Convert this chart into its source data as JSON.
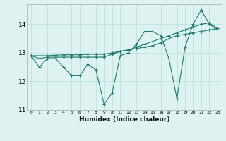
{
  "xlabel": "Humidex (Indice chaleur)",
  "ylabel": "",
  "x": [
    0,
    1,
    2,
    3,
    4,
    5,
    6,
    7,
    8,
    9,
    10,
    11,
    12,
    13,
    14,
    15,
    16,
    17,
    18,
    19,
    20,
    21,
    22,
    23
  ],
  "line1": [
    12.9,
    12.5,
    12.8,
    12.8,
    12.5,
    12.2,
    12.2,
    12.6,
    12.4,
    11.2,
    11.6,
    12.9,
    13.0,
    13.3,
    13.75,
    13.75,
    13.6,
    12.8,
    11.4,
    13.2,
    14.0,
    14.5,
    14.0,
    13.8
  ],
  "line2": [
    12.9,
    12.8,
    12.85,
    12.85,
    12.85,
    12.85,
    12.85,
    12.85,
    12.85,
    12.85,
    12.95,
    13.05,
    13.1,
    13.2,
    13.3,
    13.4,
    13.5,
    13.6,
    13.7,
    13.8,
    13.9,
    14.0,
    14.05,
    13.85
  ],
  "line3": [
    12.9,
    12.9,
    12.9,
    12.92,
    12.93,
    12.93,
    12.93,
    12.95,
    12.95,
    12.95,
    13.0,
    13.05,
    13.1,
    13.15,
    13.2,
    13.25,
    13.35,
    13.5,
    13.6,
    13.65,
    13.7,
    13.75,
    13.8,
    13.85
  ],
  "line_color": "#1a7a6e",
  "bg_color": "#dff2f2",
  "grid_color": "#b8dede",
  "ylim": [
    11.0,
    14.7
  ],
  "yticks": [
    11,
    12,
    13,
    14
  ],
  "xticks": [
    0,
    1,
    2,
    3,
    4,
    5,
    6,
    7,
    8,
    9,
    10,
    11,
    12,
    13,
    14,
    15,
    16,
    17,
    18,
    19,
    20,
    21,
    22,
    23
  ]
}
